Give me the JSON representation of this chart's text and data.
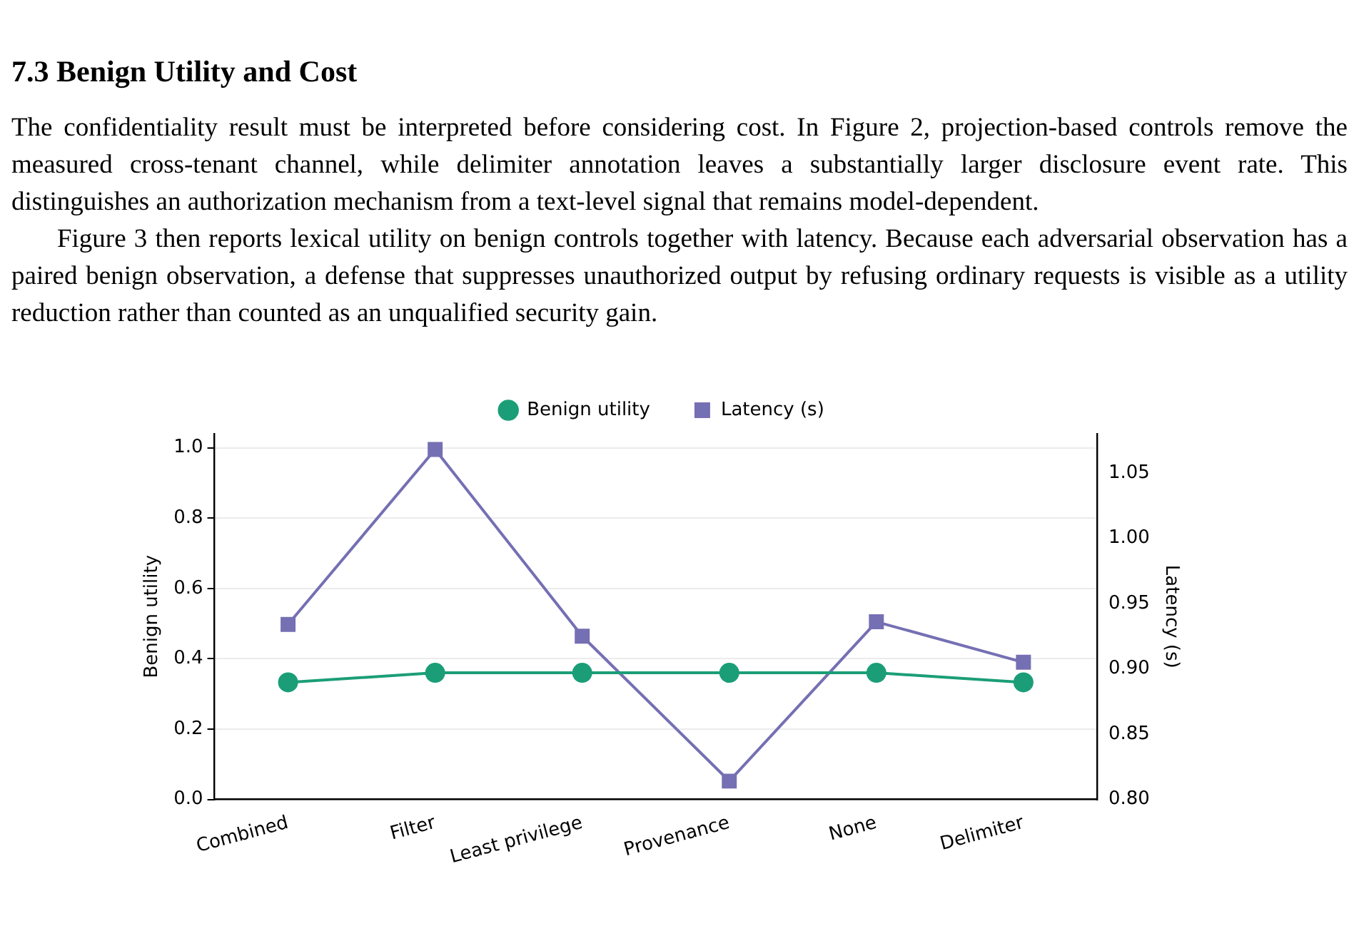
{
  "chart_data": {
    "type": "line",
    "title": "7.3 Benign Utility and Cost",
    "annotations": [
      "The confidentiality result must be interpreted before considering cost. In Figure 2, projection-based controls remove the measured cross-tenant channel, while delimiter annotation leaves a substantially larger disclosure event rate. This distinguishes an authorization mechanism from a text-level signal that remains model-dependent.",
      "Figure 3 then reports lexical utility on benign controls together with latency. Because each adversarial observation has a paired benign observation, a defense that suppresses unauthorized output by refusing ordinary requests is visible as a utility reduction rather than counted as an unqualified security gain."
    ],
    "categories": [
      "Combined",
      "Filter",
      "Least privilege",
      "Provenance",
      "None",
      "Delimiter"
    ],
    "series": [
      {
        "name": "Benign utility",
        "color": "#1b9e77",
        "marker": "circle",
        "values": [
          0.333,
          0.36,
          0.36,
          0.36,
          0.36,
          0.333
        ]
      },
      {
        "name": "Latency (s)",
        "color": "#7570b3",
        "marker": "square",
        "axis": "y2",
        "values": [
          0.934,
          1.068,
          0.925,
          0.814,
          0.936,
          0.905
        ]
      }
    ],
    "ylabel": "Benign utility",
    "y2label": "Latency (s)",
    "ylim": [
      0,
      1.04
    ],
    "yticks": [
      {
        "value": 0,
        "label": "0.0"
      },
      0.2,
      0.4,
      0.6,
      0.8,
      {
        "value": 1,
        "label": "1.0"
      }
    ],
    "y2lim": [
      0.8,
      1.08
    ],
    "y2ticks": [
      {
        "value": 0.8,
        "label": "0.80"
      },
      0.85,
      {
        "value": 0.9,
        "label": "0.90"
      },
      0.95,
      {
        "value": 1,
        "label": "1.00"
      },
      1.05
    ],
    "grid": "y",
    "legend": "top",
    "line_style": "solid"
  }
}
